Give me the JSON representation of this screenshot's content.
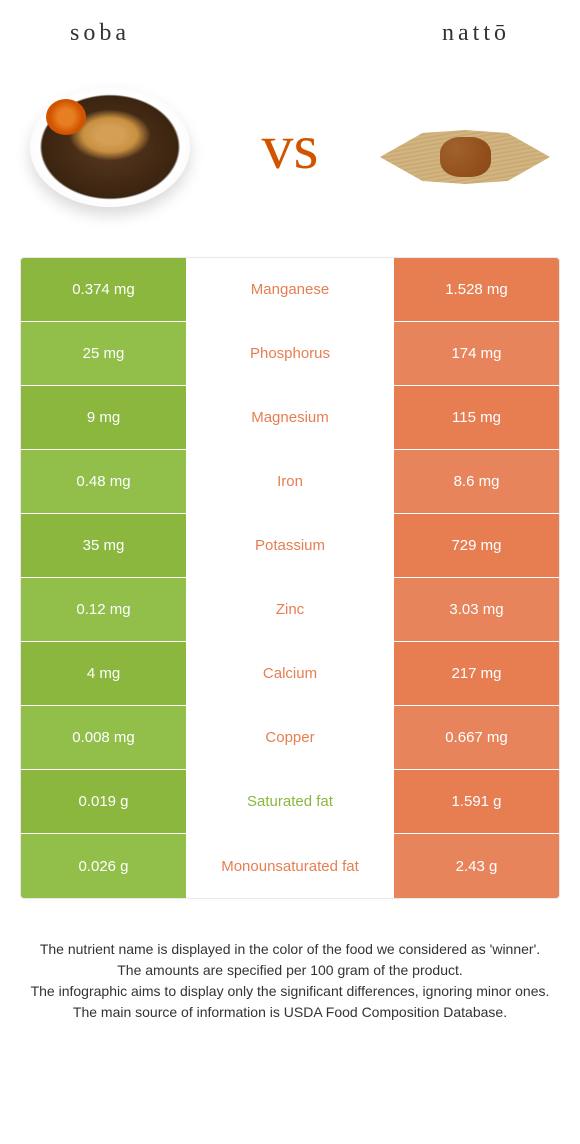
{
  "header": {
    "left_title": "soba",
    "right_title": "nattō",
    "vs": "vs"
  },
  "colors": {
    "green": "#8bb73f",
    "green_alt": "#92be4a",
    "orange": "#e67e52",
    "orange_alt": "#e8845c"
  },
  "rows": [
    {
      "left": "0.374 mg",
      "label": "Manganese",
      "right": "1.528 mg",
      "winner": "orange"
    },
    {
      "left": "25 mg",
      "label": "Phosphorus",
      "right": "174 mg",
      "winner": "orange"
    },
    {
      "left": "9 mg",
      "label": "Magnesium",
      "right": "115 mg",
      "winner": "orange"
    },
    {
      "left": "0.48 mg",
      "label": "Iron",
      "right": "8.6 mg",
      "winner": "orange"
    },
    {
      "left": "35 mg",
      "label": "Potassium",
      "right": "729 mg",
      "winner": "orange"
    },
    {
      "left": "0.12 mg",
      "label": "Zinc",
      "right": "3.03 mg",
      "winner": "orange"
    },
    {
      "left": "4 mg",
      "label": "Calcium",
      "right": "217 mg",
      "winner": "orange"
    },
    {
      "left": "0.008 mg",
      "label": "Copper",
      "right": "0.667 mg",
      "winner": "orange"
    },
    {
      "left": "0.019 g",
      "label": "Saturated fat",
      "right": "1.591 g",
      "winner": "green"
    },
    {
      "left": "0.026 g",
      "label": "Monounsaturated fat",
      "right": "2.43 g",
      "winner": "orange"
    }
  ],
  "footnote": {
    "line1": "The nutrient name is displayed in the color of the food we considered as 'winner'.",
    "line2": "The amounts are specified per 100 gram of the product.",
    "line3": "The infographic aims to display only the significant differences, ignoring minor ones.",
    "line4": "The main source of information is USDA Food Composition Database."
  }
}
